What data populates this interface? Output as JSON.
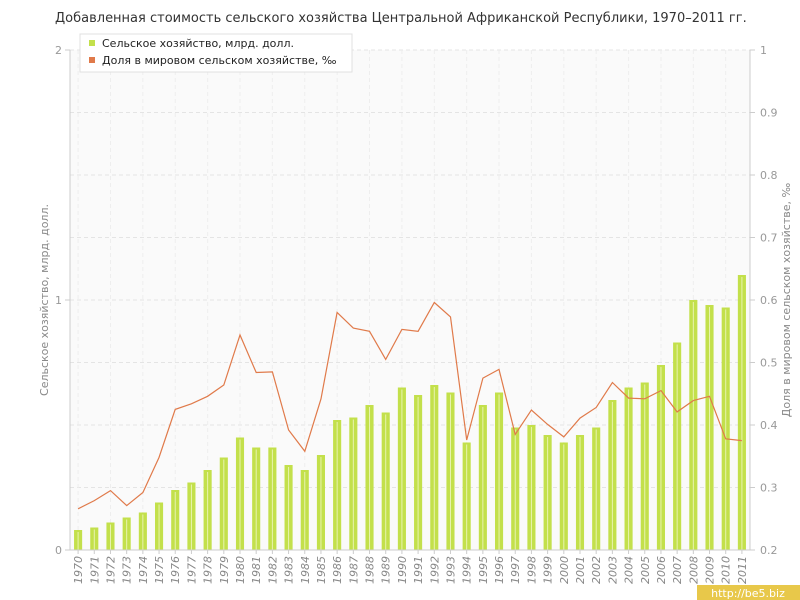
{
  "chart_data": {
    "type": "bar",
    "title": "Добавленная стоимость сельского хозяйства Центральной Африканской Республики, 1970–2011 гг.",
    "ylabel": "Сельское хозяйство, млрд. долл.",
    "y2label": "Доля в мировом сельском хозяйстве, ‰",
    "ylim": [
      0,
      2
    ],
    "y2lim": [
      0.2,
      1
    ],
    "yticks": [
      "0",
      "1",
      "2"
    ],
    "y2ticks": [
      "0.2",
      "0.3",
      "0.4",
      "0.5",
      "0.6",
      "0.7",
      "0.8",
      "0.9",
      "1"
    ],
    "grid": true,
    "legend_position": "top-left",
    "categories": [
      "1970",
      "1971",
      "1972",
      "1973",
      "1974",
      "1975",
      "1976",
      "1977",
      "1978",
      "1979",
      "1980",
      "1981",
      "1982",
      "1983",
      "1984",
      "1985",
      "1986",
      "1987",
      "1988",
      "1989",
      "1990",
      "1991",
      "1992",
      "1993",
      "1994",
      "1995",
      "1996",
      "1997",
      "1998",
      "1999",
      "2000",
      "2001",
      "2002",
      "2003",
      "2004",
      "2005",
      "2006",
      "2007",
      "2008",
      "2009",
      "2010",
      "2011"
    ],
    "series": [
      {
        "name": "Сельское хозяйство, млрд. долл.",
        "type": "bar",
        "axis": "left",
        "color": "#c3e04b",
        "values": [
          0.08,
          0.09,
          0.11,
          0.13,
          0.15,
          0.19,
          0.24,
          0.27,
          0.32,
          0.37,
          0.45,
          0.41,
          0.41,
          0.34,
          0.32,
          0.38,
          0.52,
          0.53,
          0.58,
          0.55,
          0.65,
          0.62,
          0.66,
          0.63,
          0.43,
          0.58,
          0.63,
          0.49,
          0.5,
          0.46,
          0.43,
          0.46,
          0.49,
          0.6,
          0.65,
          0.67,
          0.74,
          0.83,
          1.0,
          0.98,
          0.97,
          1.1
        ]
      },
      {
        "name": "Доля в мировом сельском хозяйстве, ‰",
        "type": "line",
        "axis": "right",
        "color": "#e07a4a",
        "values": [
          0.266,
          0.279,
          0.295,
          0.271,
          0.292,
          0.348,
          0.425,
          0.434,
          0.446,
          0.464,
          0.544,
          0.484,
          0.485,
          0.392,
          0.358,
          0.442,
          0.58,
          0.555,
          0.55,
          0.505,
          0.553,
          0.55,
          0.596,
          0.573,
          0.376,
          0.475,
          0.489,
          0.385,
          0.424,
          0.401,
          0.381,
          0.411,
          0.428,
          0.468,
          0.443,
          0.442,
          0.455,
          0.421,
          0.439,
          0.446,
          0.378,
          0.375
        ]
      }
    ],
    "watermark": "http://be5.biz"
  }
}
